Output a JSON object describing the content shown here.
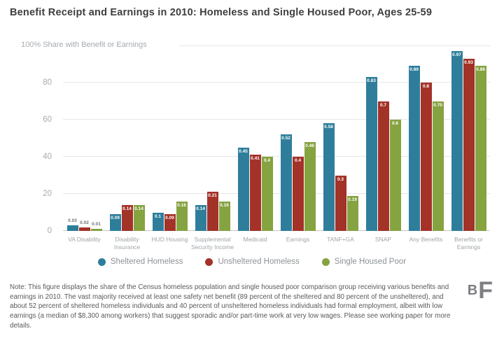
{
  "title": "Benefit Receipt and Earnings in 2010: Homeless and Single Housed Poor, Ages 25-59",
  "chart_data": {
    "type": "bar",
    "categories": [
      "VA Disability",
      "Disability Insurance",
      "HUD Housing",
      "Supplemental Security Income",
      "Medicaid",
      "Earnings",
      "TANF+GA",
      "SNAP",
      "Any Benefits",
      "Benefits or Earnings"
    ],
    "series": [
      {
        "name": "Sheltered Homeless",
        "color": "#2e7e9b",
        "values": [
          0.03,
          0.09,
          0.1,
          0.14,
          0.45,
          0.52,
          0.58,
          0.83,
          0.89,
          0.97
        ],
        "labels": [
          "0.03",
          "0.09",
          "0.1",
          "0.14",
          "0.45",
          "0.52",
          "0.58",
          "0.83",
          "0.89",
          "0.97"
        ]
      },
      {
        "name": "Unsheltered Homeless",
        "color": "#a33228",
        "values": [
          0.02,
          0.14,
          0.09,
          0.21,
          0.41,
          0.4,
          0.3,
          0.7,
          0.8,
          0.93
        ],
        "labels": [
          "0.02",
          "0.14",
          "0.09",
          "0.21",
          "0.41",
          "0.4",
          "0.3",
          "0.7",
          "0.8",
          "0.93"
        ]
      },
      {
        "name": "Single Housed Poor",
        "color": "#85a340",
        "values": [
          0.01,
          0.14,
          0.16,
          0.16,
          0.4,
          0.48,
          0.19,
          0.6,
          0.7,
          0.89
        ],
        "labels": [
          "0.01",
          "0.14",
          "0.16",
          "0.16",
          "0.4",
          "0.48",
          "0.19",
          "0.6",
          "0.70",
          "0.89"
        ]
      }
    ],
    "y_axis": {
      "top_label": "100% Share with Benefit or Earnings",
      "ticks": [
        0,
        20,
        40,
        60,
        80
      ],
      "ylim": [
        0,
        100
      ],
      "unit": "percent (bar labels shown as proportions)"
    },
    "grid": true,
    "legend_position": "bottom"
  },
  "note": "Note: This figure displays the share of the Census homeless population and single housed poor comparison group receiving various benefits and earnings in 2010. The vast majority received at least one safety net benefit (89 percent of the sheltered and 80 percent of the unsheltered), and about 52 percent of sheltered homeless individuals and 40 percent of unsheltered homeless individuals had formal employment, albeit with low earnings (a median of $8,300 among workers) that suggest sporadic and/or part-time work at very low wages. Please see working paper for more details.",
  "logo": {
    "b": "B",
    "f": "F"
  }
}
